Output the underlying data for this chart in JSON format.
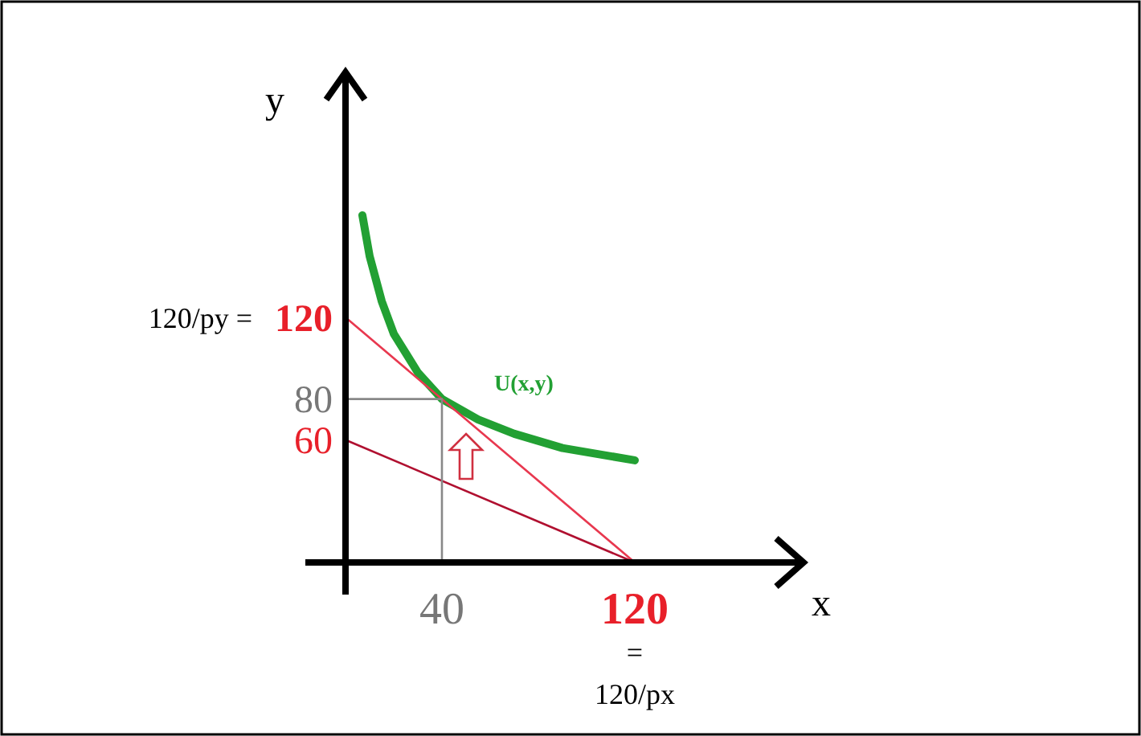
{
  "chart_data": {
    "type": "line",
    "xlabel": "x",
    "ylabel": "y",
    "xlim": [
      0,
      190
    ],
    "ylim": [
      0,
      240
    ],
    "xticks": [
      40,
      120
    ],
    "yticks": [
      60,
      80,
      120
    ],
    "grid": false,
    "marker": "none",
    "line_style": "solid",
    "series": [
      {
        "name": "U(x,y)",
        "color": "#22a033",
        "x": [
          7,
          10,
          15,
          20,
          30,
          40,
          55,
          70,
          90,
          120
        ],
        "values": [
          170,
          150,
          128,
          112,
          93,
          80,
          70,
          63,
          56,
          50
        ]
      },
      {
        "color": "#e8384f",
        "x": [
          0,
          120
        ],
        "values": [
          120,
          0
        ]
      },
      {
        "color": "#b01030",
        "x": [
          0,
          120
        ],
        "values": [
          60,
          0
        ]
      },
      {
        "color": "#888888",
        "x": [
          0,
          40,
          40
        ],
        "values": [
          80,
          80,
          0
        ]
      }
    ],
    "annotations": [
      "120/py =",
      "= 120/px"
    ]
  }
}
